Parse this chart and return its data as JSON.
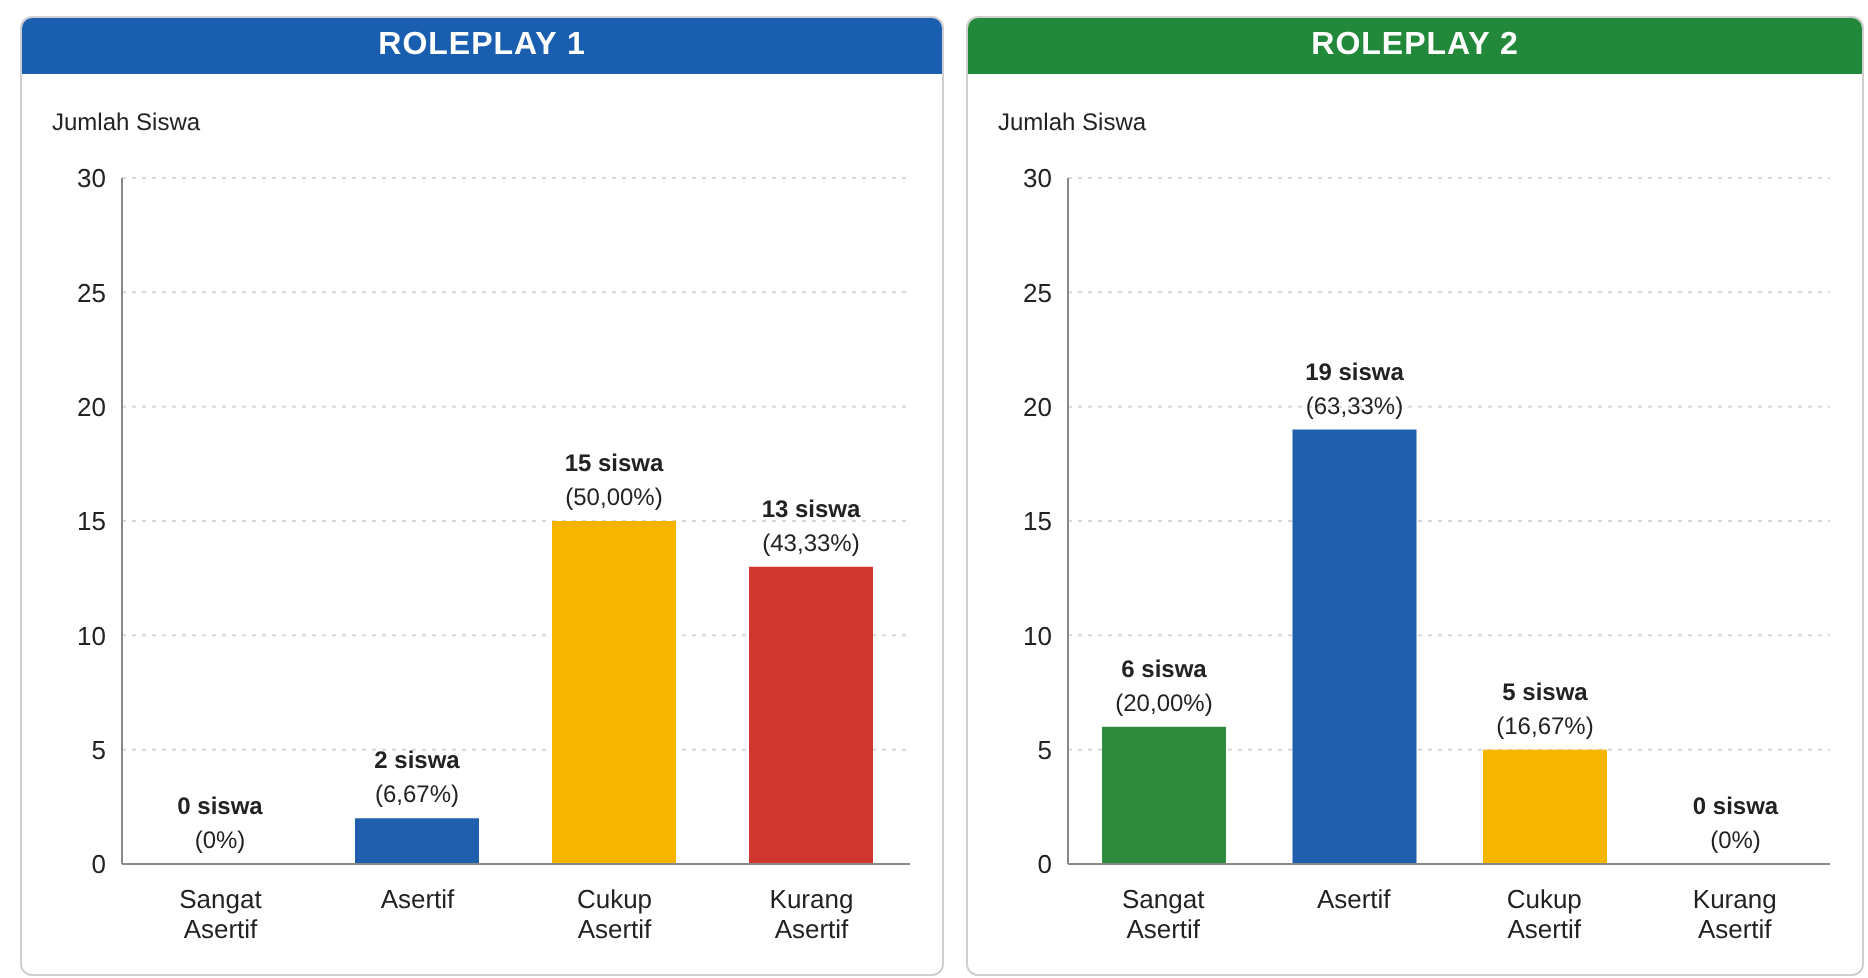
{
  "chart_data": [
    {
      "type": "bar",
      "title": "ROLEPLAY 1",
      "ylabel": "Jumlah Siswa",
      "categories": [
        "Sangat Asertif",
        "Asertif",
        "Cukup Asertif",
        "Kurang Asertif"
      ],
      "values": [
        0,
        2,
        15,
        13
      ],
      "colors": [
        "#2e8b3e",
        "#1f5fae",
        "#f7b500",
        "#d0352f"
      ],
      "value_labels": [
        "0 siswa\n(0%)",
        "2 siswa\n(6,67%)",
        "15 siswa\n(50,00%)",
        "13 siswa\n(43,33%)"
      ],
      "ylim": [
        0,
        30
      ],
      "yticks": [
        0,
        5,
        10,
        15,
        20,
        25,
        30
      ],
      "grid": "y"
    },
    {
      "type": "bar",
      "title": "ROLEPLAY 2",
      "ylabel": "Jumlah Siswa",
      "categories": [
        "Sangat Asertif",
        "Asertif",
        "Cukup Asertif",
        "Kurang Asertif"
      ],
      "values": [
        6,
        19,
        5,
        0
      ],
      "colors": [
        "#2e8b3e",
        "#1f5fae",
        "#f7b500",
        "#d0352f"
      ],
      "value_labels": [
        "6 siswa\n(20,00%)",
        "19 siswa\n(63,33%)",
        "5 siswa\n(16,67%)",
        "0 siswa\n(0%)"
      ],
      "ylim": [
        0,
        30
      ],
      "yticks": [
        0,
        5,
        10,
        15,
        20,
        25,
        30
      ],
      "grid": "y"
    }
  ]
}
